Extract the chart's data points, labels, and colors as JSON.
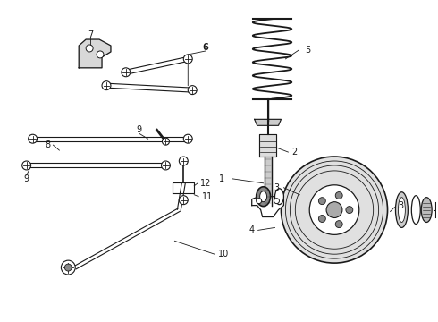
{
  "bg_color": "#ffffff",
  "lc": "#1a1a1a",
  "fig_width": 4.9,
  "fig_height": 3.6,
  "dpi": 100
}
